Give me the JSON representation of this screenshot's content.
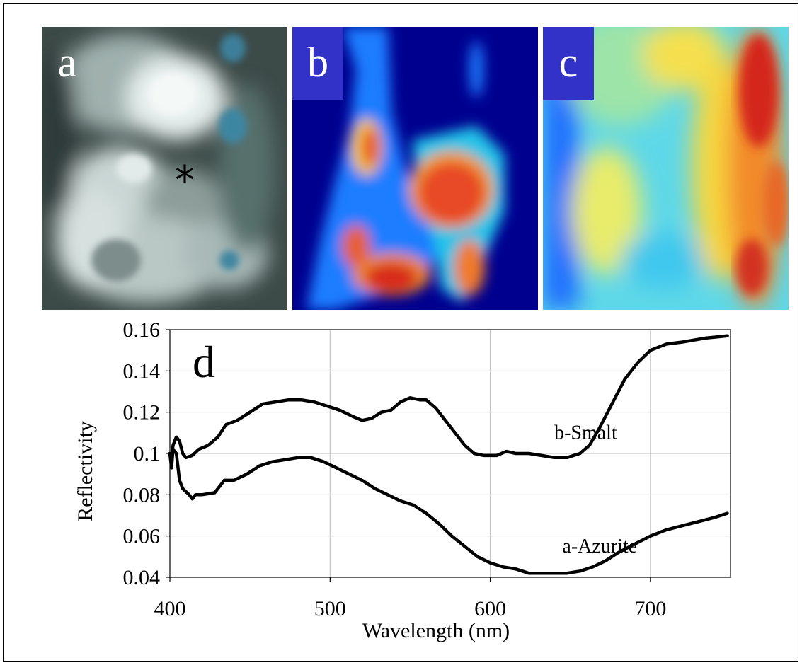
{
  "panels": [
    {
      "label": "a",
      "marker": "*"
    },
    {
      "label": "b"
    },
    {
      "label": "c"
    }
  ],
  "chart_data": {
    "type": "line",
    "panel_label": "d",
    "title": "",
    "xlabel": "Wavelength (nm)",
    "ylabel": "Reflectivity",
    "xlim": [
      400,
      750
    ],
    "ylim": [
      0.04,
      0.16
    ],
    "xticks": [
      400,
      500,
      600,
      700
    ],
    "yticks": [
      "0.04",
      "0.06",
      "0.08",
      "0.1",
      "0.12",
      "0.14",
      "0.16"
    ],
    "grid": true,
    "series": [
      {
        "name": "b-Smalt",
        "points": [
          [
            400,
            0.1
          ],
          [
            401,
            0.097
          ],
          [
            402,
            0.104
          ],
          [
            404,
            0.108
          ],
          [
            406,
            0.106
          ],
          [
            408,
            0.1
          ],
          [
            410,
            0.098
          ],
          [
            414,
            0.099
          ],
          [
            418,
            0.102
          ],
          [
            424,
            0.104
          ],
          [
            430,
            0.108
          ],
          [
            435,
            0.114
          ],
          [
            442,
            0.116
          ],
          [
            450,
            0.12
          ],
          [
            458,
            0.124
          ],
          [
            466,
            0.125
          ],
          [
            474,
            0.126
          ],
          [
            482,
            0.126
          ],
          [
            490,
            0.125
          ],
          [
            498,
            0.123
          ],
          [
            506,
            0.121
          ],
          [
            514,
            0.118
          ],
          [
            520,
            0.116
          ],
          [
            526,
            0.117
          ],
          [
            532,
            0.12
          ],
          [
            538,
            0.121
          ],
          [
            544,
            0.125
          ],
          [
            550,
            0.127
          ],
          [
            556,
            0.126
          ],
          [
            560,
            0.126
          ],
          [
            566,
            0.122
          ],
          [
            572,
            0.116
          ],
          [
            578,
            0.11
          ],
          [
            584,
            0.104
          ],
          [
            590,
            0.1
          ],
          [
            596,
            0.099
          ],
          [
            604,
            0.099
          ],
          [
            610,
            0.101
          ],
          [
            616,
            0.1
          ],
          [
            624,
            0.1
          ],
          [
            632,
            0.099
          ],
          [
            640,
            0.098
          ],
          [
            648,
            0.098
          ],
          [
            656,
            0.1
          ],
          [
            662,
            0.104
          ],
          [
            668,
            0.112
          ],
          [
            676,
            0.124
          ],
          [
            684,
            0.136
          ],
          [
            692,
            0.144
          ],
          [
            700,
            0.15
          ],
          [
            710,
            0.153
          ],
          [
            720,
            0.154
          ],
          [
            735,
            0.156
          ],
          [
            748,
            0.157
          ]
        ]
      },
      {
        "name": "a-Azurite",
        "points": [
          [
            400,
            0.1
          ],
          [
            401,
            0.093
          ],
          [
            402,
            0.102
          ],
          [
            404,
            0.1
          ],
          [
            406,
            0.087
          ],
          [
            408,
            0.083
          ],
          [
            412,
            0.08
          ],
          [
            414,
            0.078
          ],
          [
            416,
            0.08
          ],
          [
            420,
            0.08
          ],
          [
            428,
            0.081
          ],
          [
            434,
            0.087
          ],
          [
            440,
            0.087
          ],
          [
            448,
            0.09
          ],
          [
            456,
            0.094
          ],
          [
            464,
            0.096
          ],
          [
            472,
            0.097
          ],
          [
            480,
            0.098
          ],
          [
            488,
            0.098
          ],
          [
            496,
            0.096
          ],
          [
            504,
            0.093
          ],
          [
            512,
            0.09
          ],
          [
            520,
            0.087
          ],
          [
            528,
            0.083
          ],
          [
            536,
            0.08
          ],
          [
            544,
            0.077
          ],
          [
            552,
            0.075
          ],
          [
            560,
            0.071
          ],
          [
            568,
            0.066
          ],
          [
            576,
            0.06
          ],
          [
            584,
            0.055
          ],
          [
            592,
            0.05
          ],
          [
            600,
            0.047
          ],
          [
            608,
            0.045
          ],
          [
            616,
            0.044
          ],
          [
            624,
            0.042
          ],
          [
            632,
            0.042
          ],
          [
            640,
            0.042
          ],
          [
            648,
            0.042
          ],
          [
            656,
            0.043
          ],
          [
            664,
            0.045
          ],
          [
            672,
            0.048
          ],
          [
            680,
            0.052
          ],
          [
            690,
            0.056
          ],
          [
            700,
            0.06
          ],
          [
            710,
            0.063
          ],
          [
            720,
            0.065
          ],
          [
            730,
            0.067
          ],
          [
            740,
            0.069
          ],
          [
            748,
            0.071
          ]
        ]
      }
    ],
    "annotations": [
      {
        "text": "b-Smalt",
        "x": 640,
        "y": 0.107
      },
      {
        "text": "a-Azurite",
        "x": 645,
        "y": 0.052
      }
    ]
  }
}
